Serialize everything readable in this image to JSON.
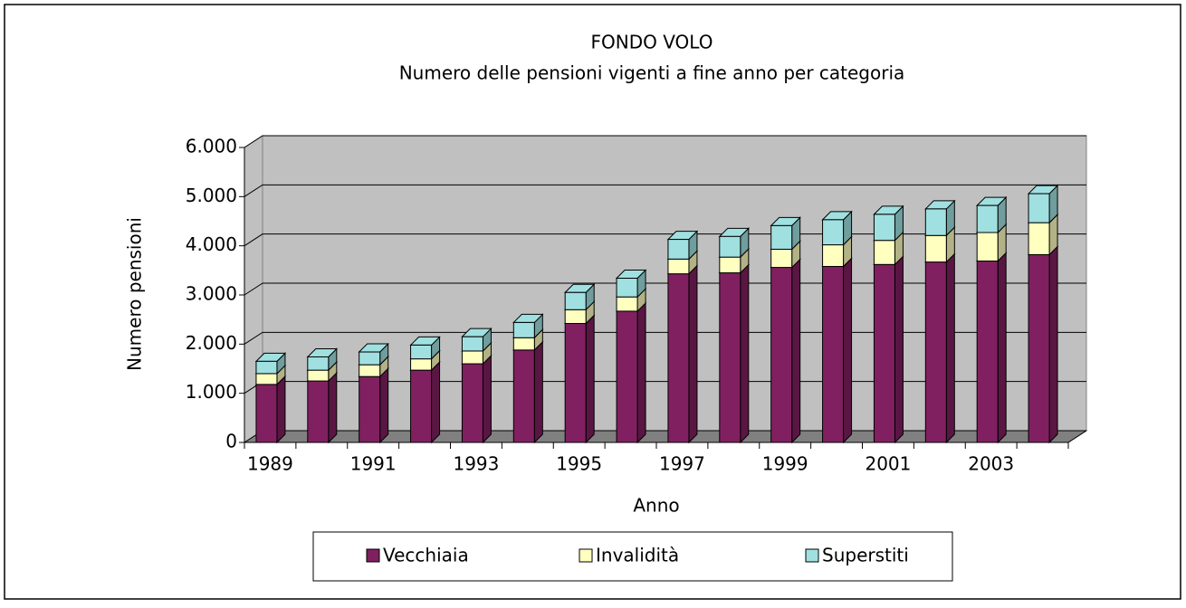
{
  "chart_data": {
    "type": "bar",
    "stacked": true,
    "title": "FONDO VOLO",
    "subtitle": "Numero delle pensioni vigenti a fine anno per categoria",
    "x_label": "Anno",
    "y_label": "Numero pensioni",
    "categories": [
      "1989",
      null,
      "1991",
      null,
      "1993",
      null,
      "1995",
      null,
      "1997",
      null,
      "1999",
      null,
      "2001",
      null,
      "2003",
      null
    ],
    "series": [
      {
        "name": "Vecchiaia",
        "color": "#802060",
        "values": [
          1180,
          1250,
          1340,
          1470,
          1600,
          1880,
          2420,
          2670,
          3430,
          3450,
          3560,
          3580,
          3620,
          3670,
          3690,
          3820
        ]
      },
      {
        "name": "Invalidità",
        "color": "#ffffc0",
        "values": [
          220,
          220,
          240,
          230,
          260,
          250,
          280,
          290,
          300,
          320,
          370,
          440,
          490,
          540,
          580,
          650
        ]
      },
      {
        "name": "Superstiti",
        "color": "#a0e0e0",
        "values": [
          250,
          270,
          260,
          280,
          290,
          310,
          350,
          380,
          400,
          420,
          480,
          510,
          530,
          540,
          550,
          590
        ]
      }
    ],
    "ylim": [
      0,
      6000
    ],
    "yticks": [
      0,
      {
        "value": 1000,
        "label": "1.000"
      },
      {
        "value": 2000,
        "label": "2.000"
      },
      {
        "value": 3000,
        "label": "3.000"
      },
      {
        "value": 4000,
        "label": "4.000"
      },
      {
        "value": 5000,
        "label": "5.000"
      },
      {
        "value": 6000,
        "label": "6.000"
      }
    ],
    "grid": true,
    "legend": "bottom"
  }
}
